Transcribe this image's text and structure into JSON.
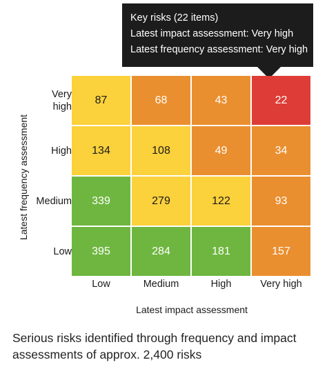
{
  "tooltip": {
    "line1": "Key risks (22 items)",
    "line2": "Latest impact assessment: Very high",
    "line3": "Latest frequency assessment: Very high"
  },
  "chart_data": {
    "type": "heatmap",
    "x_categories": [
      "Low",
      "Medium",
      "High",
      "Very high"
    ],
    "y_categories": [
      "Very high",
      "High",
      "Medium",
      "Low"
    ],
    "values": [
      [
        87,
        68,
        43,
        22
      ],
      [
        134,
        108,
        49,
        34
      ],
      [
        339,
        279,
        122,
        93
      ],
      [
        395,
        284,
        181,
        157
      ]
    ],
    "colors": [
      [
        "#fbd13c",
        "#ea8f2f",
        "#ea8f2f",
        "#dd3d36"
      ],
      [
        "#fbd13c",
        "#fbd13c",
        "#ea8f2f",
        "#ea8f2f"
      ],
      [
        "#6fb640",
        "#fbd13c",
        "#fbd13c",
        "#ea8f2f"
      ],
      [
        "#6fb640",
        "#6fb640",
        "#6fb640",
        "#ea8f2f"
      ]
    ],
    "value_text_colors": [
      [
        "#1a1a1a",
        "#ffffff",
        "#ffffff",
        "#ffffff"
      ],
      [
        "#1a1a1a",
        "#1a1a1a",
        "#ffffff",
        "#ffffff"
      ],
      [
        "#ffffff",
        "#1a1a1a",
        "#1a1a1a",
        "#ffffff"
      ],
      [
        "#ffffff",
        "#ffffff",
        "#ffffff",
        "#ffffff"
      ]
    ],
    "xlabel": "Latest impact assessment",
    "ylabel": "Latest frequency assessment",
    "highlight_cell": {
      "row": 0,
      "col": 3
    }
  },
  "caption": "Serious risks identified through frequency and impact assessments of approx. 2,400 risks"
}
